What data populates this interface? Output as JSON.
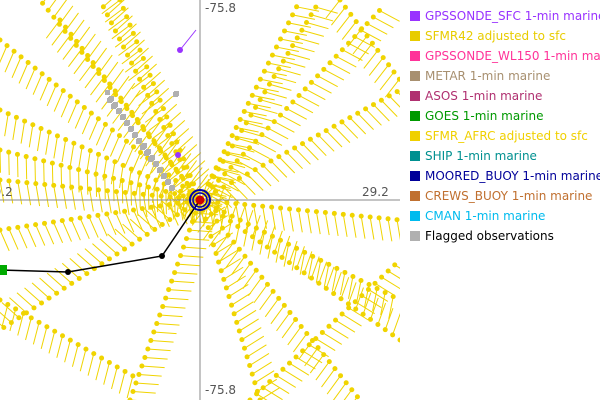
{
  "axes": {
    "lon_label": "-75.8",
    "lat_label": "29.2"
  },
  "legend": [
    {
      "label": "GPSSONDE_SFC 1-min marine",
      "color": "#9933ff"
    },
    {
      "label": "SFMR42 adjusted to sfc",
      "color": "#e8cc00"
    },
    {
      "label": "GPSSONDE_WL150 1-min marine",
      "color": "#ff3399"
    },
    {
      "label": "METAR 1-min marine",
      "color": "#a89070"
    },
    {
      "label": "ASOS 1-min marine",
      "color": "#b03070"
    },
    {
      "label": "GOES 1-min marine",
      "color": "#009900"
    },
    {
      "label": "SFMR_AFRC adjusted to sfc",
      "color": "#f0d000"
    },
    {
      "label": "SHIP 1-min marine",
      "color": "#009090"
    },
    {
      "label": "MOORED_BUOY 1-min marine",
      "color": "#000099"
    },
    {
      "label": "CREWS_BUOY 1-min marine",
      "color": "#c07030"
    },
    {
      "label": "CMAN 1-min marine",
      "color": "#00bbee"
    },
    {
      "label": "Flagged observations",
      "color": "#b0b0b0",
      "text_color": "#000000"
    }
  ]
}
